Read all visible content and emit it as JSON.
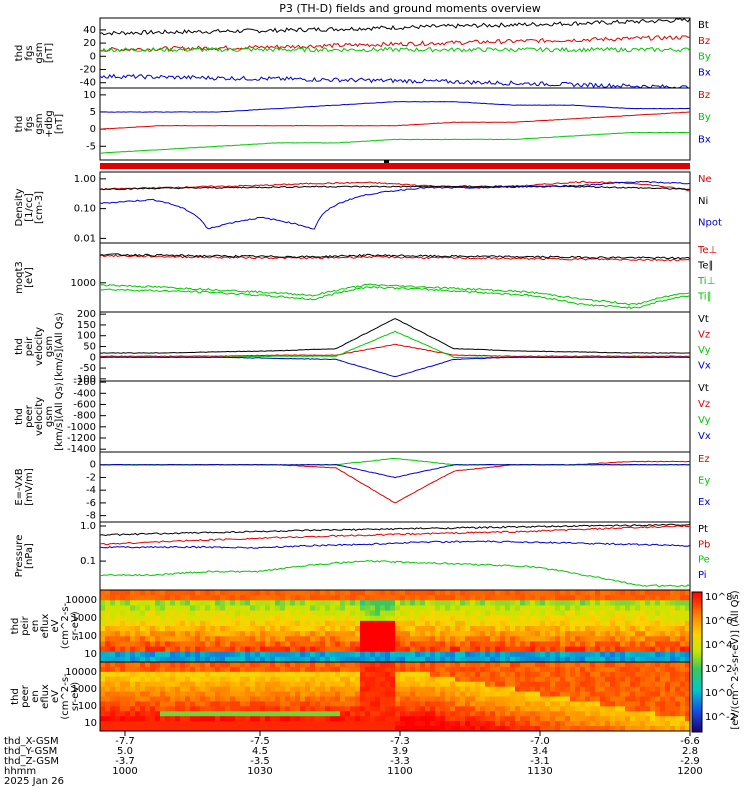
{
  "title": "P3 (TH-D) fields and ground moments overview",
  "colors": {
    "black": "#000000",
    "red": "#e00000",
    "green": "#00c800",
    "blue": "#0000d0"
  },
  "chart_data": [
    {
      "type": "line",
      "id": "fgs",
      "ylabel": [
        "thd",
        "fgs",
        "gsm",
        "[nT]"
      ],
      "ylim": [
        -48,
        58
      ],
      "yticks": [
        "40",
        "20",
        "0",
        "-20",
        "-40"
      ],
      "ytick_values": [
        40,
        20,
        0,
        -20,
        -40
      ],
      "series": [
        {
          "name": "Bt",
          "color": "black",
          "values": [
            35,
            37,
            39,
            42,
            45,
            48,
            51,
            55
          ]
        },
        {
          "name": "Bz",
          "color": "red",
          "values": [
            10,
            12,
            14,
            17,
            20,
            23,
            26,
            29
          ]
        },
        {
          "name": "By",
          "color": "green",
          "values": [
            10,
            10,
            10,
            10,
            10,
            10,
            10,
            10
          ]
        },
        {
          "name": "Bx",
          "color": "blue",
          "values": [
            -30,
            -32,
            -34,
            -36,
            -38,
            -41,
            -44,
            -47
          ]
        }
      ]
    },
    {
      "type": "line",
      "id": "fgsdbg",
      "ylabel": [
        "thd",
        "fgs",
        "gsm",
        "+dbg",
        "[nT]"
      ],
      "ylim": [
        -9,
        12
      ],
      "yticks": [
        "10",
        "5",
        "0",
        "-5"
      ],
      "ytick_values": [
        10,
        5,
        0,
        -5
      ],
      "series": [
        {
          "name": "Bz",
          "color": "red",
          "values": [
            0,
            1,
            1,
            1,
            1,
            1,
            2,
            2,
            3,
            4,
            5
          ]
        },
        {
          "name": "By",
          "color": "green",
          "values": [
            -7,
            -6,
            -5,
            -4,
            -4,
            -3,
            -3,
            -3,
            -2,
            -1,
            -1
          ]
        },
        {
          "name": "Bx",
          "color": "blue",
          "values": [
            5,
            5,
            5,
            6,
            7,
            8,
            8,
            7,
            7,
            6,
            6
          ]
        }
      ]
    },
    {
      "type": "line",
      "id": "density",
      "log": true,
      "ylabel": [
        "Density",
        "[1/cc]",
        "[cm-3]"
      ],
      "ylim": [
        0.007,
        1.7
      ],
      "yticks": [
        "1.00",
        "0.10",
        "0.01"
      ],
      "ytick_values": [
        1,
        0.1,
        0.01
      ],
      "series": [
        {
          "name": "Ne",
          "color": "red",
          "values": [
            0.45,
            0.5,
            0.55,
            0.6,
            0.7,
            0.75,
            0.6,
            0.5,
            0.6,
            0.8,
            0.7,
            0.4
          ]
        },
        {
          "name": "Ni",
          "color": "black",
          "values": [
            0.45,
            0.48,
            0.5,
            0.52,
            0.55,
            0.55,
            0.55,
            0.56,
            0.55,
            0.55,
            0.5,
            0.45
          ]
        },
        {
          "name": "Npot",
          "color": "blue",
          "values": [
            0.15,
            0.2,
            0.02,
            0.05,
            0.02,
            0.3,
            0.5,
            0.5,
            0.55,
            0.6,
            0.8,
            0.7
          ]
        }
      ]
    },
    {
      "type": "line",
      "id": "temp",
      "log": true,
      "ylabel": [
        "moqt3",
        "[eV]"
      ],
      "ylim": [
        200,
        9000
      ],
      "yticks": [
        "1000"
      ],
      "ytick_values": [
        1000
      ],
      "series": [
        {
          "name": "Te⊥",
          "color": "red",
          "values": [
            4500,
            4300,
            4100,
            4000,
            3900,
            4200,
            4000,
            3900,
            3800,
            3700,
            3600,
            3500
          ]
        },
        {
          "name": "Te∥",
          "color": "black",
          "values": [
            4800,
            4600,
            4400,
            4300,
            4200,
            4600,
            4400,
            4300,
            4200,
            4100,
            4000,
            3900
          ]
        },
        {
          "name": "Ti⊥",
          "color": "green",
          "values": [
            900,
            800,
            700,
            600,
            500,
            900,
            800,
            700,
            600,
            400,
            300,
            600
          ]
        },
        {
          "name": "Ti∥",
          "color": "green",
          "values": [
            700,
            650,
            600,
            500,
            400,
            800,
            700,
            600,
            500,
            300,
            250,
            500
          ]
        }
      ]
    },
    {
      "type": "line",
      "id": "peirvel",
      "ylabel": [
        "thd",
        "peir",
        "velocity",
        "gsm",
        "[km/s](All Qs)"
      ],
      "ylim": [
        -110,
        210
      ],
      "yticks": [
        "200",
        "150",
        "100",
        "50",
        "0",
        "-50",
        "-100"
      ],
      "ytick_values": [
        200,
        150,
        100,
        50,
        0,
        -50,
        -100
      ],
      "series": [
        {
          "name": "Vt",
          "color": "black",
          "values": [
            20,
            20,
            25,
            30,
            40,
            180,
            40,
            30,
            25,
            20,
            20
          ]
        },
        {
          "name": "Vz",
          "color": "red",
          "values": [
            5,
            5,
            5,
            10,
            10,
            60,
            10,
            5,
            5,
            5,
            5
          ]
        },
        {
          "name": "Vy",
          "color": "green",
          "values": [
            0,
            0,
            0,
            5,
            5,
            120,
            0,
            0,
            0,
            0,
            0
          ]
        },
        {
          "name": "Vx",
          "color": "blue",
          "values": [
            0,
            0,
            0,
            -5,
            -10,
            -90,
            -10,
            0,
            0,
            0,
            0
          ]
        }
      ]
    },
    {
      "type": "line",
      "id": "peervel",
      "ylabel": [
        "thd",
        "peer",
        "velocity",
        "gsm",
        "[km/s](All Qs)"
      ],
      "ylim": [
        -1450,
        -180
      ],
      "yticks": [
        "-200",
        "-400",
        "-600",
        "-800",
        "-1000",
        "-1200",
        "-1400"
      ],
      "ytick_values": [
        -200,
        -400,
        -600,
        -800,
        -1000,
        -1200,
        -1400
      ],
      "series": [
        {
          "name": "Vt",
          "color": "black",
          "values": []
        },
        {
          "name": "Vz",
          "color": "red",
          "values": []
        },
        {
          "name": "Vy",
          "color": "green",
          "values": []
        },
        {
          "name": "Vx",
          "color": "blue",
          "values": []
        }
      ]
    },
    {
      "type": "line",
      "id": "efield",
      "ylabel": [
        "E=-VxB",
        "[mV/m]"
      ],
      "ylim": [
        -9,
        2
      ],
      "yticks": [
        "0",
        "-2",
        "-4",
        "-6",
        "-8"
      ],
      "ytick_values": [
        0,
        -2,
        -4,
        -6,
        -8
      ],
      "series": [
        {
          "name": "Ez",
          "color": "red",
          "values": [
            0,
            0,
            0,
            0,
            -0.5,
            -6,
            -1,
            0,
            0,
            0.5,
            0.5
          ]
        },
        {
          "name": "Ey",
          "color": "green",
          "values": [
            0,
            0,
            0,
            0,
            0,
            1,
            0,
            0,
            0,
            0,
            0
          ]
        },
        {
          "name": "Ex",
          "color": "blue",
          "values": [
            0,
            0,
            0,
            0,
            0,
            -2,
            0,
            0,
            0,
            0,
            0
          ]
        }
      ]
    },
    {
      "type": "line",
      "id": "pressure",
      "log": true,
      "ylabel": [
        "Pressure",
        "[nPa]"
      ],
      "ylim": [
        0.015,
        1.3
      ],
      "yticks": [
        "1.0",
        "0.1"
      ],
      "ytick_values": [
        1,
        0.1
      ],
      "series": [
        {
          "name": "Pt",
          "color": "black",
          "values": [
            0.55,
            0.6,
            0.65,
            0.7,
            0.75,
            0.8,
            0.85,
            0.9,
            0.95,
            1.0,
            1.05,
            1.1
          ]
        },
        {
          "name": "Pb",
          "color": "red",
          "values": [
            0.3,
            0.35,
            0.4,
            0.45,
            0.5,
            0.55,
            0.6,
            0.65,
            0.7,
            0.8,
            0.9,
            1.0
          ]
        },
        {
          "name": "Pe",
          "color": "green",
          "values": [
            0.04,
            0.04,
            0.05,
            0.05,
            0.08,
            0.1,
            0.09,
            0.08,
            0.07,
            0.04,
            0.02,
            0.02
          ]
        },
        {
          "name": "Pi",
          "color": "blue",
          "values": [
            0.25,
            0.25,
            0.25,
            0.24,
            0.28,
            0.3,
            0.35,
            0.36,
            0.35,
            0.32,
            0.3,
            0.27
          ]
        }
      ]
    },
    {
      "type": "heatmap",
      "id": "peireflux",
      "ylabel": [
        "thd",
        "peir",
        "en",
        "eflux",
        "eV",
        "(cm^2-s-",
        "sr-eV)"
      ],
      "yticks": [
        "10000",
        "1000",
        "100",
        "10"
      ]
    },
    {
      "type": "heatmap",
      "id": "peereflux",
      "ylabel": [
        "thd",
        "peer",
        "en",
        "eflux",
        "eV",
        "(cm^2-s-",
        "sr-eV)"
      ],
      "yticks": [
        "10000",
        "1000",
        "100",
        "10"
      ]
    }
  ],
  "colorbar": {
    "label": "[eV/(cm^2-s-sr-eV)] (All Qs)",
    "ticks": [
      "10^8",
      "10^6",
      "10^4",
      "10^2",
      "10^0",
      "10^-2"
    ]
  },
  "xaxis": {
    "row_labels": [
      "thd_X-GSM",
      "thd_Y-GSM",
      "thd_Z-GSM",
      "hhmm",
      "2025 Jan 26"
    ],
    "columns": [
      [
        "-7.7",
        "5.0",
        "-3.7",
        "1000"
      ],
      [
        "-7.5",
        "4.5",
        "-3.5",
        "1030"
      ],
      [
        "-7.3",
        "3.9",
        "-3.3",
        "1100"
      ],
      [
        "-7.0",
        "3.4",
        "-3.1",
        "1130"
      ],
      [
        "-6.6",
        "2.8",
        "-2.9",
        "1200"
      ]
    ]
  }
}
